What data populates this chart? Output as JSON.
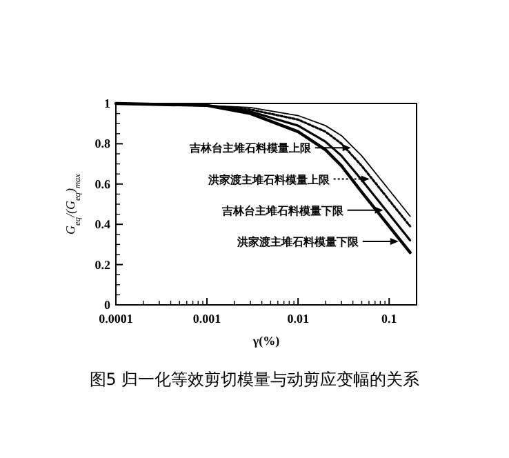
{
  "chart_data": {
    "type": "line",
    "title": "图5 归一化等效剪切模量与动剪应变幅的关系",
    "xlabel": "γ(%)",
    "ylabel": "G$_{eq}$/(G$_{eq}$)$_{max}$",
    "log": "x",
    "grid": false,
    "legend": "right",
    "x": [
      0.0001,
      0.001,
      0.003,
      0.01,
      0.02,
      0.03,
      0.05,
      0.1,
      0.17
    ],
    "series": [
      {
        "name": "吉林台主堆石料模量上限",
        "color": "#000000",
        "line_style": "solid",
        "values": [
          1,
          0.99,
          0.98,
          0.94,
          0.89,
          0.84,
          0.74,
          0.57,
          0.44
        ]
      },
      {
        "name": "洪家渡主堆石料模量上限",
        "color": "#000000",
        "line_style": "dotted",
        "values": [
          1,
          0.99,
          0.97,
          0.92,
          0.86,
          0.8,
          0.69,
          0.52,
          0.39
        ]
      },
      {
        "name": "吉林台主堆石料模量下限",
        "color": "#000000",
        "line_style": "solid",
        "values": [
          1,
          0.99,
          0.96,
          0.89,
          0.81,
          0.74,
          0.62,
          0.45,
          0.32
        ]
      },
      {
        "name": "洪家渡主堆石料模量下限",
        "color": "#000000",
        "line_style": "solid",
        "values": [
          1,
          0.99,
          0.95,
          0.86,
          0.77,
          0.69,
          0.56,
          0.39,
          0.26
        ]
      }
    ],
    "xlim": [
      0.0001,
      0.2
    ],
    "xticks": [
      0.0001,
      0.001,
      0.01,
      0.1
    ],
    "ylim": [
      0,
      1
    ],
    "yticks": [
      0,
      0.2,
      0.4,
      0.6,
      0.8,
      1
    ]
  }
}
